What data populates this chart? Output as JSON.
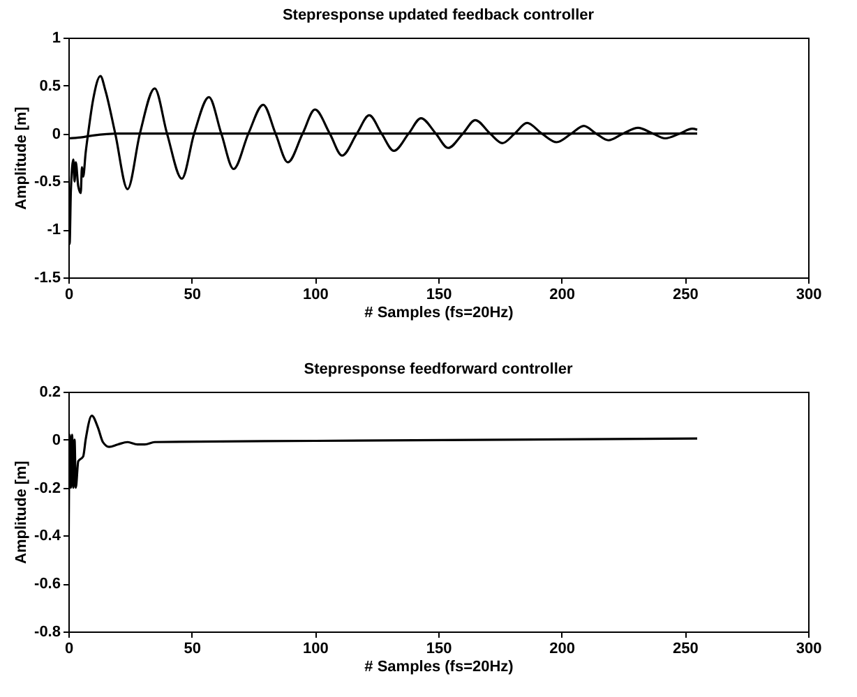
{
  "chart_data": [
    {
      "type": "line",
      "title": "Stepresponse updated feedback controller",
      "xlabel": "# Samples (fs=20Hz)",
      "ylabel": "Amplitude [m]",
      "xlim": [
        0,
        300
      ],
      "xticks": [
        0,
        50,
        100,
        150,
        200,
        250,
        300
      ],
      "ylim": [
        -1.5,
        1
      ],
      "yticks": [
        -1.5,
        -1,
        -0.5,
        0,
        0.5,
        1
      ],
      "grid": false,
      "legend": false,
      "series": [
        {
          "color": "#000000",
          "x": [
            0,
            0.5,
            1,
            2,
            2.5,
            3,
            4,
            5,
            5.5,
            6,
            7,
            8,
            10,
            13,
            15,
            19,
            24,
            29,
            35,
            40,
            46,
            51,
            57,
            62,
            67,
            73,
            79,
            84,
            89,
            95,
            100,
            106,
            111,
            117,
            122,
            127,
            132,
            138,
            143,
            149,
            154,
            160,
            165,
            171,
            176,
            181,
            186,
            192,
            198,
            204,
            209,
            214,
            219,
            225,
            231,
            237,
            242,
            248,
            253,
            255
          ],
          "values": [
            -0.8,
            -1.15,
            -0.6,
            -0.27,
            -0.5,
            -0.3,
            -0.55,
            -0.62,
            -0.35,
            -0.45,
            -0.2,
            0,
            0.35,
            0.6,
            0.45,
            0,
            -0.58,
            0,
            0.47,
            0,
            -0.47,
            0,
            0.38,
            0,
            -0.37,
            0,
            0.3,
            0,
            -0.3,
            0,
            0.25,
            0,
            -0.23,
            0,
            0.19,
            0,
            -0.18,
            0,
            0.16,
            0,
            -0.15,
            0,
            0.14,
            0,
            -0.1,
            0,
            0.11,
            0,
            -0.09,
            0,
            0.08,
            0,
            -0.07,
            0,
            0.06,
            0,
            -0.05,
            0,
            0.05,
            0.04
          ]
        },
        {
          "color": "#000000",
          "x": [
            0,
            5,
            10,
            20,
            255
          ],
          "values": [
            -0.05,
            -0.04,
            -0.02,
            0,
            0
          ]
        }
      ]
    },
    {
      "type": "line",
      "title": "Stepresponse feedforward controller",
      "xlabel": "# Samples (fs=20Hz)",
      "ylabel": "Amplitude [m]",
      "xlim": [
        0,
        300
      ],
      "xticks": [
        0,
        50,
        100,
        150,
        200,
        250,
        300
      ],
      "ylim": [
        -0.8,
        0.2
      ],
      "yticks": [
        -0.8,
        -0.6,
        -0.4,
        -0.2,
        0,
        0.2
      ],
      "grid": false,
      "legend": false,
      "series": [
        {
          "color": "#000000",
          "x": [
            0,
            0.5,
            1,
            1.5,
            2,
            2.5,
            3,
            4,
            6,
            7,
            9.5,
            12,
            14,
            16.5,
            20,
            24,
            28,
            31,
            35,
            100,
            255
          ],
          "values": [
            -0.65,
            0.02,
            -0.2,
            0.02,
            -0.2,
            0,
            -0.2,
            -0.09,
            -0.07,
            0,
            0.1,
            0.05,
            -0.01,
            -0.03,
            -0.02,
            -0.01,
            -0.02,
            -0.02,
            -0.01,
            -0.005,
            0.005
          ]
        }
      ]
    }
  ]
}
